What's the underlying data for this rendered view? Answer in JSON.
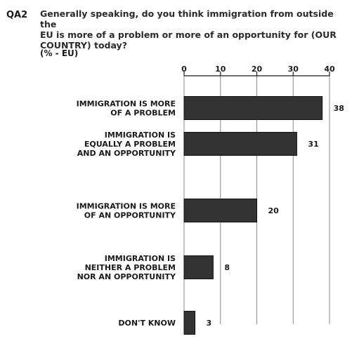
{
  "header": {
    "code": "QA2",
    "question_lines": [
      "Generally speaking, do you think immigration from outside the",
      "EU is more of a problem or more of an opportunity for (OUR",
      "COUNTRY) today?"
    ],
    "unit": "(% - EU)"
  },
  "chart_data": {
    "type": "bar",
    "orientation": "horizontal",
    "categories": [
      [
        "IMMIGRATION IS MORE",
        "OF A PROBLEM"
      ],
      [
        "IMMIGRATION IS",
        "EQUALLY A PROBLEM",
        "AND AN OPPORTUNITY"
      ],
      [
        "IMMIGRATION IS MORE",
        "OF AN OPPORTUNITY"
      ],
      [
        "IMMIGRATION IS",
        "NEITHER A PROBLEM",
        "NOR AN OPPORTUNITY"
      ],
      [
        "DON'T KNOW"
      ]
    ],
    "values": [
      38,
      31,
      20,
      8,
      3
    ],
    "value_labels": [
      "38",
      "31",
      "20",
      "8",
      "3"
    ],
    "xlim": [
      0,
      40
    ],
    "xticks": [
      "0",
      "10",
      "20",
      "30",
      "40"
    ],
    "grid": true,
    "bar_color": "#333333"
  }
}
